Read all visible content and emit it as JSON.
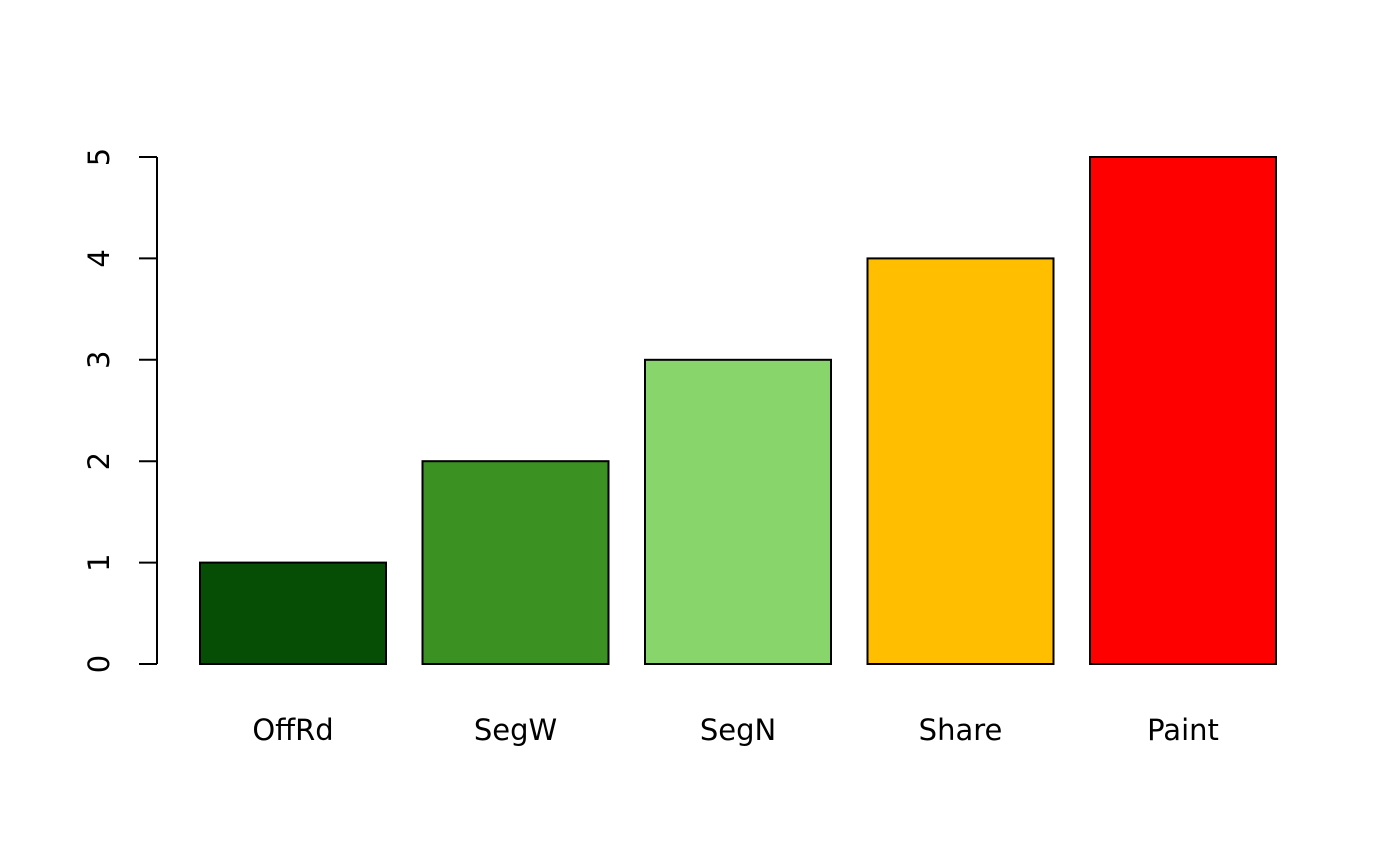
{
  "chart_data": {
    "type": "bar",
    "title": "",
    "xlabel": "",
    "ylabel": "",
    "categories": [
      "OffRd",
      "SegW",
      "SegN",
      "Share",
      "Paint"
    ],
    "values": [
      1,
      2,
      3,
      4,
      5
    ],
    "colors": [
      "#064d06",
      "#3b9121",
      "#88d66b",
      "#ffbf00",
      "#ff0000"
    ],
    "ylim": [
      0,
      5
    ],
    "yticks": [
      0,
      1,
      2,
      3,
      4,
      5
    ],
    "ytick_labels": [
      "0",
      "1",
      "2",
      "3",
      "4",
      "5"
    ],
    "grid": false,
    "legend": "none"
  }
}
